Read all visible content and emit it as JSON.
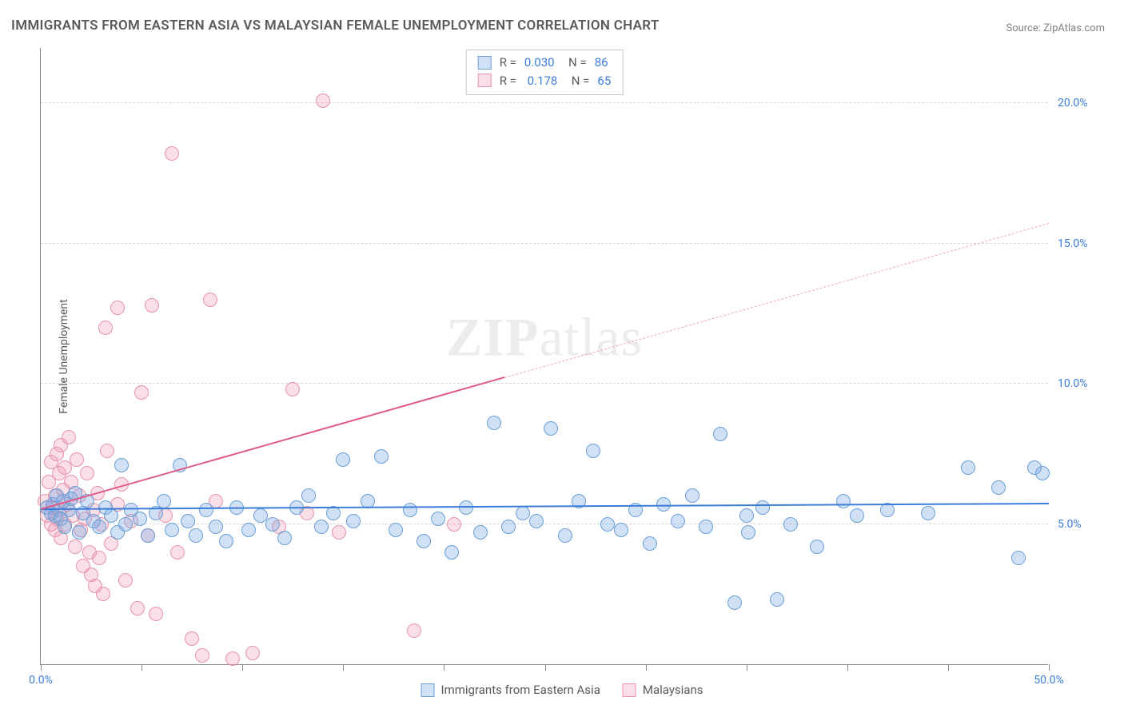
{
  "title": "IMMIGRANTS FROM EASTERN ASIA VS MALAYSIAN FEMALE UNEMPLOYMENT CORRELATION CHART",
  "source": "Source: ZipAtlas.com",
  "ylabel": "Female Unemployment",
  "watermark_a": "ZIP",
  "watermark_b": "atlas",
  "chart": {
    "type": "scatter",
    "xlim": [
      0,
      50
    ],
    "ylim": [
      0,
      22
    ],
    "xticks": [
      0,
      5,
      10,
      15,
      20,
      25,
      30,
      35,
      40,
      45,
      50
    ],
    "xtick_labels": {
      "0": "0.0%",
      "50": "50.0%"
    },
    "ygrid": [
      5,
      10,
      15,
      20
    ],
    "ytick_labels": {
      "5": "5.0%",
      "10": "10.0%",
      "15": "15.0%",
      "20": "20.0%"
    },
    "background_color": "#ffffff",
    "grid_color": "#d8d8d8",
    "axis_color": "#888888",
    "marker_radius": 9,
    "marker_stroke_width": 1.3,
    "series": [
      {
        "name": "Immigrants from Eastern Asia",
        "color_fill": "rgba(120,170,230,0.35)",
        "color_stroke": "#6a9fd4",
        "R": "0.030",
        "N": "86",
        "trend": {
          "x1": 0,
          "y1": 5.5,
          "x2": 50,
          "y2": 5.7,
          "color": "#3b7dd8",
          "width": 2,
          "dashed": false
        },
        "points": [
          [
            0.3,
            5.6
          ],
          [
            0.5,
            5.4
          ],
          [
            0.6,
            5.7
          ],
          [
            0.7,
            5.3
          ],
          [
            0.8,
            6.0
          ],
          [
            1.0,
            5.2
          ],
          [
            1.1,
            5.8
          ],
          [
            1.2,
            4.9
          ],
          [
            1.4,
            5.5
          ],
          [
            1.5,
            5.9
          ],
          [
            1.7,
            6.1
          ],
          [
            1.9,
            4.7
          ],
          [
            2.1,
            5.4
          ],
          [
            2.3,
            5.8
          ],
          [
            2.6,
            5.1
          ],
          [
            2.9,
            4.9
          ],
          [
            3.2,
            5.6
          ],
          [
            3.5,
            5.3
          ],
          [
            3.8,
            4.7
          ],
          [
            4.0,
            7.1
          ],
          [
            4.2,
            5.0
          ],
          [
            4.5,
            5.5
          ],
          [
            4.9,
            5.2
          ],
          [
            5.3,
            4.6
          ],
          [
            5.7,
            5.4
          ],
          [
            6.1,
            5.8
          ],
          [
            6.5,
            4.8
          ],
          [
            6.9,
            7.1
          ],
          [
            7.3,
            5.1
          ],
          [
            7.7,
            4.6
          ],
          [
            8.2,
            5.5
          ],
          [
            8.7,
            4.9
          ],
          [
            9.2,
            4.4
          ],
          [
            9.7,
            5.6
          ],
          [
            10.3,
            4.8
          ],
          [
            10.9,
            5.3
          ],
          [
            11.5,
            5.0
          ],
          [
            12.1,
            4.5
          ],
          [
            12.7,
            5.6
          ],
          [
            13.3,
            6.0
          ],
          [
            13.9,
            4.9
          ],
          [
            14.5,
            5.4
          ],
          [
            15.0,
            7.3
          ],
          [
            15.5,
            5.1
          ],
          [
            16.2,
            5.8
          ],
          [
            16.9,
            7.4
          ],
          [
            17.6,
            4.8
          ],
          [
            18.3,
            5.5
          ],
          [
            19.0,
            4.4
          ],
          [
            19.7,
            5.2
          ],
          [
            20.4,
            4.0
          ],
          [
            21.1,
            5.6
          ],
          [
            21.8,
            4.7
          ],
          [
            22.5,
            8.6
          ],
          [
            23.2,
            4.9
          ],
          [
            23.9,
            5.4
          ],
          [
            24.6,
            5.1
          ],
          [
            25.3,
            8.4
          ],
          [
            26.0,
            4.6
          ],
          [
            26.7,
            5.8
          ],
          [
            27.4,
            7.6
          ],
          [
            28.1,
            5.0
          ],
          [
            28.8,
            4.8
          ],
          [
            29.5,
            5.5
          ],
          [
            30.2,
            4.3
          ],
          [
            30.9,
            5.7
          ],
          [
            31.6,
            5.1
          ],
          [
            32.3,
            6.0
          ],
          [
            33.0,
            4.9
          ],
          [
            33.7,
            8.2
          ],
          [
            34.4,
            2.2
          ],
          [
            35.1,
            4.7
          ],
          [
            35.8,
            5.6
          ],
          [
            36.5,
            2.3
          ],
          [
            37.2,
            5.0
          ],
          [
            38.5,
            4.2
          ],
          [
            39.8,
            5.8
          ],
          [
            40.5,
            5.3
          ],
          [
            42.0,
            5.5
          ],
          [
            44.0,
            5.4
          ],
          [
            46.0,
            7.0
          ],
          [
            47.5,
            6.3
          ],
          [
            48.5,
            3.8
          ],
          [
            49.3,
            7.0
          ],
          [
            49.7,
            6.8
          ],
          [
            35.0,
            5.3
          ]
        ]
      },
      {
        "name": "Malaysians",
        "color_fill": "rgba(240,150,175,0.30)",
        "color_stroke": "#e693ac",
        "R": "0.178",
        "N": "65",
        "trend_solid": {
          "x1": 0,
          "y1": 5.5,
          "x2": 23,
          "y2": 10.2,
          "color": "#e05a87",
          "width": 2
        },
        "trend_dashed": {
          "x1": 23,
          "y1": 10.2,
          "x2": 50,
          "y2": 15.7,
          "color": "#f0a8bc",
          "width": 1.5
        },
        "points": [
          [
            0.2,
            5.8
          ],
          [
            0.3,
            5.3
          ],
          [
            0.4,
            6.5
          ],
          [
            0.5,
            5.0
          ],
          [
            0.5,
            7.2
          ],
          [
            0.6,
            5.6
          ],
          [
            0.7,
            6.0
          ],
          [
            0.7,
            4.8
          ],
          [
            0.8,
            7.5
          ],
          [
            0.8,
            5.2
          ],
          [
            0.9,
            6.8
          ],
          [
            0.9,
            5.5
          ],
          [
            1.0,
            7.8
          ],
          [
            1.0,
            4.5
          ],
          [
            1.1,
            6.2
          ],
          [
            1.2,
            5.0
          ],
          [
            1.2,
            7.0
          ],
          [
            1.3,
            5.7
          ],
          [
            1.4,
            8.1
          ],
          [
            1.5,
            6.5
          ],
          [
            1.6,
            5.3
          ],
          [
            1.7,
            4.2
          ],
          [
            1.8,
            7.3
          ],
          [
            1.9,
            6.0
          ],
          [
            2.0,
            4.8
          ],
          [
            2.1,
            3.5
          ],
          [
            2.2,
            5.2
          ],
          [
            2.3,
            6.8
          ],
          [
            2.4,
            4.0
          ],
          [
            2.5,
            3.2
          ],
          [
            2.6,
            5.5
          ],
          [
            2.7,
            2.8
          ],
          [
            2.8,
            6.1
          ],
          [
            2.9,
            3.8
          ],
          [
            3.0,
            5.0
          ],
          [
            3.1,
            2.5
          ],
          [
            3.3,
            7.6
          ],
          [
            3.5,
            4.3
          ],
          [
            3.8,
            5.7
          ],
          [
            4.0,
            6.4
          ],
          [
            4.2,
            3.0
          ],
          [
            4.5,
            5.1
          ],
          [
            4.8,
            2.0
          ],
          [
            5.0,
            9.7
          ],
          [
            5.3,
            4.6
          ],
          [
            5.7,
            1.8
          ],
          [
            6.2,
            5.3
          ],
          [
            6.8,
            4.0
          ],
          [
            7.5,
            0.9
          ],
          [
            8.0,
            0.3
          ],
          [
            8.7,
            5.8
          ],
          [
            9.5,
            0.2
          ],
          [
            10.5,
            0.4
          ],
          [
            11.8,
            4.9
          ],
          [
            12.5,
            9.8
          ],
          [
            13.2,
            5.4
          ],
          [
            14.0,
            20.1
          ],
          [
            14.8,
            4.7
          ],
          [
            18.5,
            1.2
          ],
          [
            20.5,
            5.0
          ],
          [
            3.2,
            12.0
          ],
          [
            3.8,
            12.7
          ],
          [
            5.5,
            12.8
          ],
          [
            6.5,
            18.2
          ],
          [
            8.4,
            13.0
          ]
        ]
      }
    ],
    "bottom_legend": [
      {
        "label": "Immigrants from Eastern Asia",
        "fill": "rgba(120,170,230,0.35)",
        "stroke": "#6a9fd4"
      },
      {
        "label": "Malaysians",
        "fill": "rgba(240,150,175,0.30)",
        "stroke": "#e693ac"
      }
    ]
  }
}
